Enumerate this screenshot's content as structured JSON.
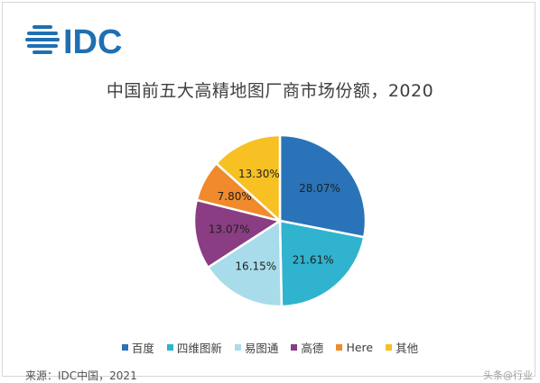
{
  "logo": {
    "text": "IDC",
    "icon": "idc-globe-icon"
  },
  "chart_data": {
    "type": "pie",
    "title": "中国前五大高精地图厂商市场份额，2020",
    "slices": [
      {
        "name": "百度",
        "value": 28.07,
        "label": "28.07%",
        "color": "#2a73b8"
      },
      {
        "name": "四维图新",
        "value": 21.61,
        "label": "21.61%",
        "color": "#2fb3cf"
      },
      {
        "name": "易图通",
        "value": 16.15,
        "label": "16.15%",
        "color": "#a8dcea"
      },
      {
        "name": "高德",
        "value": 13.07,
        "label": "13.07%",
        "color": "#8a3d82"
      },
      {
        "name": "Here",
        "value": 7.8,
        "label": "7.80%",
        "color": "#f08a2c"
      },
      {
        "name": "其他",
        "value": 13.3,
        "label": "13.30%",
        "color": "#f7c023"
      }
    ],
    "legend_position": "bottom"
  },
  "source": "来源：IDC中国，2021",
  "watermark": "头条@行业"
}
